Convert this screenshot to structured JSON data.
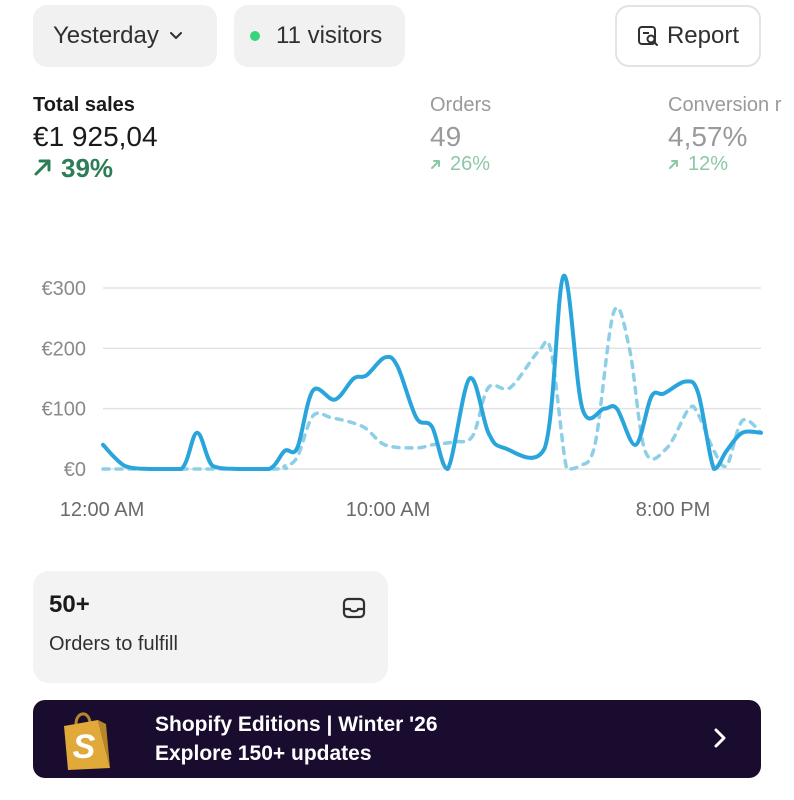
{
  "toolbar": {
    "date_label": "Yesterday",
    "visitors_label": "11 visitors",
    "report_label": "Report"
  },
  "metrics": {
    "sales": {
      "label": "Total sales",
      "value": "€1 925,04",
      "change": "39%"
    },
    "orders": {
      "label": "Orders",
      "value": "49",
      "change": "26%"
    },
    "conversion": {
      "label": "Conversion r",
      "value": "4,57%",
      "change": "12%"
    }
  },
  "chart_data": {
    "type": "line",
    "yticks": [
      "€300",
      "€200",
      "€100",
      "€0"
    ],
    "xticks": [
      "12:00 AM",
      "10:00 AM",
      "8:00 PM"
    ],
    "ylim": [
      0,
      300
    ],
    "series": [
      {
        "style": "solid",
        "color": "#2aa5dc",
        "points": [
          [
            0,
            40
          ],
          [
            0.7,
            5
          ],
          [
            1.5,
            0
          ],
          [
            2.5,
            0
          ],
          [
            3,
            60
          ],
          [
            3.5,
            5
          ],
          [
            4.3,
            0
          ],
          [
            5.3,
            0
          ],
          [
            5.8,
            30
          ],
          [
            6.2,
            35
          ],
          [
            6.7,
            130
          ],
          [
            7.4,
            115
          ],
          [
            8,
            150
          ],
          [
            8.4,
            155
          ],
          [
            9,
            185
          ],
          [
            9.4,
            170
          ],
          [
            10,
            85
          ],
          [
            10.5,
            70
          ],
          [
            11,
            0
          ],
          [
            11.7,
            150
          ],
          [
            12.3,
            60
          ],
          [
            12.8,
            35
          ],
          [
            14.1,
            35
          ],
          [
            14.7,
            320
          ],
          [
            15.3,
            100
          ],
          [
            16,
            100
          ],
          [
            16.4,
            100
          ],
          [
            17,
            40
          ],
          [
            17.5,
            120
          ],
          [
            17.9,
            125
          ],
          [
            18.6,
            145
          ],
          [
            19,
            125
          ],
          [
            19.5,
            0
          ],
          [
            19.9,
            30
          ],
          [
            20.4,
            60
          ],
          [
            21,
            60
          ]
        ]
      },
      {
        "style": "dashed",
        "color": "#8ecfe8",
        "points": [
          [
            0,
            0
          ],
          [
            5.3,
            0
          ],
          [
            5.8,
            5
          ],
          [
            6.2,
            20
          ],
          [
            6.7,
            88
          ],
          [
            7.3,
            85
          ],
          [
            8.3,
            70
          ],
          [
            9,
            40
          ],
          [
            10,
            35
          ],
          [
            10.5,
            40
          ],
          [
            11.2,
            45
          ],
          [
            11.8,
            55
          ],
          [
            12.3,
            135
          ],
          [
            13,
            135
          ],
          [
            13.9,
            195
          ],
          [
            14.3,
            195
          ],
          [
            14.8,
            0
          ],
          [
            15.2,
            5
          ],
          [
            15.7,
            40
          ],
          [
            16.3,
            260
          ],
          [
            16.8,
            200
          ],
          [
            17.3,
            30
          ],
          [
            18,
            35
          ],
          [
            18.7,
            100
          ],
          [
            19,
            90
          ],
          [
            19.5,
            30
          ],
          [
            19.9,
            5
          ],
          [
            20.4,
            80
          ],
          [
            21,
            60
          ]
        ]
      }
    ]
  },
  "fulfill": {
    "count": "50+",
    "label": "Orders to fulfill"
  },
  "promo": {
    "title": "Shopify Editions | Winter '26",
    "subtitle": "Explore 150+ updates"
  }
}
